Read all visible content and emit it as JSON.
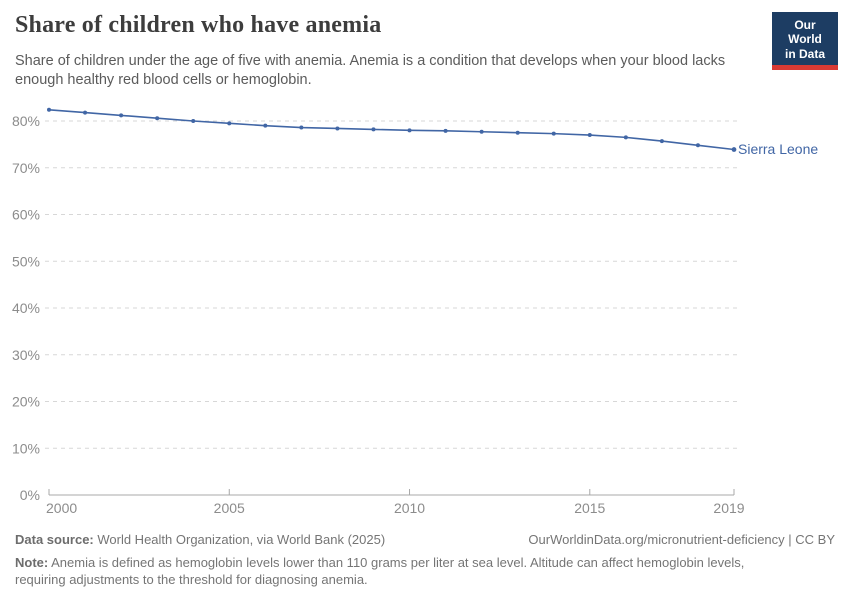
{
  "header": {
    "title": "Share of children who have anemia",
    "subtitle": "Share of children under the age of five with anemia. Anemia is a condition that develops when your blood lacks enough healthy red blood cells or hemoglobin.",
    "logo": {
      "line1": "Our World",
      "line2": "in Data",
      "bg_color": "#1d3d63",
      "bar_color": "#d93a34"
    }
  },
  "chart_data": {
    "type": "line",
    "title": "Share of children who have anemia",
    "xlabel": "",
    "ylabel": "",
    "x": [
      2000,
      2001,
      2002,
      2003,
      2004,
      2005,
      2006,
      2007,
      2008,
      2009,
      2010,
      2011,
      2012,
      2013,
      2014,
      2015,
      2016,
      2017,
      2018,
      2019
    ],
    "series": [
      {
        "name": "Sierra Leone",
        "color": "#4166a5",
        "values": [
          82.4,
          81.8,
          81.2,
          80.6,
          80.0,
          79.5,
          79.0,
          78.6,
          78.4,
          78.2,
          78.0,
          77.9,
          77.7,
          77.5,
          77.3,
          77.0,
          76.5,
          75.7,
          74.8,
          73.9
        ]
      }
    ],
    "x_ticks": [
      2000,
      2005,
      2010,
      2015,
      2019
    ],
    "y_ticks": [
      0,
      10,
      20,
      30,
      40,
      50,
      60,
      70,
      80
    ],
    "y_tick_suffix": "%",
    "xlim": [
      2000,
      2019
    ],
    "ylim": [
      0,
      85
    ],
    "grid": "horizontal-dashed",
    "legend_position": "right-of-last-point",
    "colors": {
      "grid": "#d7d7d7",
      "axis": "#a8a8a8",
      "tick_label": "#8c8c8c"
    }
  },
  "footer": {
    "data_source_label": "Data source:",
    "data_source_text": " World Health Organization, via World Bank (2025)",
    "link_text": "OurWorldinData.org/micronutrient-deficiency | CC BY",
    "note_label": "Note:",
    "note_text": " Anemia is defined as hemoglobin levels lower than 110 grams per liter at sea level. Altitude can affect hemoglobin levels, requiring adjustments to the threshold for diagnosing anemia."
  }
}
